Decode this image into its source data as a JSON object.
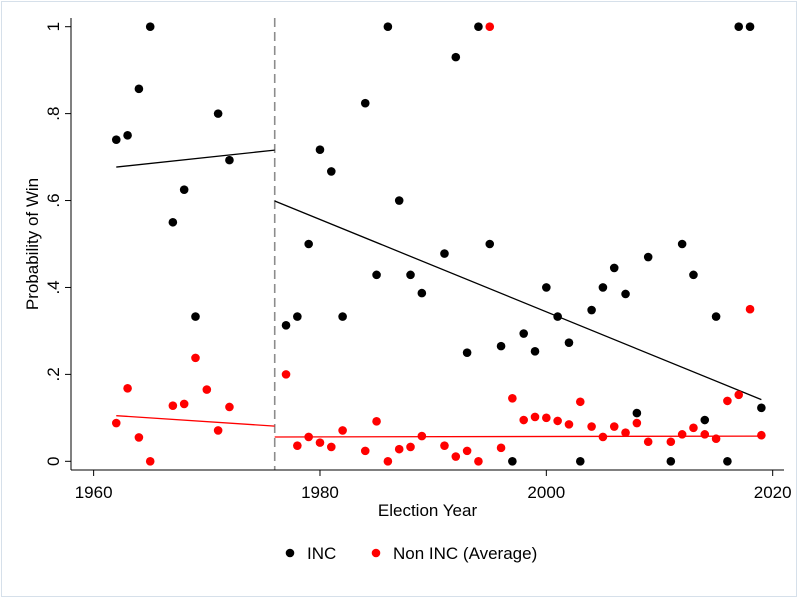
{
  "chart_data": {
    "type": "scatter",
    "xlabel": "Election Year",
    "ylabel": "Probability of Win",
    "xlim": [
      1958,
      2021
    ],
    "ylim": [
      -0.02,
      1.02
    ],
    "x_ticks": [
      1960,
      1980,
      2000,
      2020
    ],
    "x_tick_labels": [
      "1960",
      "1980",
      "2000",
      "2020"
    ],
    "y_ticks": [
      0,
      0.2,
      0.4,
      0.6,
      0.8,
      1
    ],
    "y_tick_labels": [
      "0",
      ".2",
      ".4",
      ".6",
      ".8",
      "1"
    ],
    "grid": false,
    "legend_position": "bottom",
    "cutoff_x": 1976,
    "series": [
      {
        "name": "INC",
        "color": "#000000",
        "points": [
          [
            1962,
            0.74
          ],
          [
            1963,
            0.75
          ],
          [
            1964,
            0.857
          ],
          [
            1965,
            1.0
          ],
          [
            1967,
            0.55
          ],
          [
            1968,
            0.625
          ],
          [
            1969,
            0.333
          ],
          [
            1971,
            0.8
          ],
          [
            1972,
            0.693
          ],
          [
            1977,
            0.313
          ],
          [
            1978,
            0.333
          ],
          [
            1979,
            0.5
          ],
          [
            1980,
            0.717
          ],
          [
            1981,
            0.667
          ],
          [
            1982,
            0.333
          ],
          [
            1984,
            0.824
          ],
          [
            1985,
            0.429
          ],
          [
            1986,
            1.0
          ],
          [
            1987,
            0.6
          ],
          [
            1988,
            0.429
          ],
          [
            1989,
            0.387
          ],
          [
            1991,
            0.478
          ],
          [
            1992,
            0.93
          ],
          [
            1993,
            0.25
          ],
          [
            1994,
            1.0
          ],
          [
            1995,
            0.5
          ],
          [
            1996,
            0.265
          ],
          [
            1997,
            0.0
          ],
          [
            1998,
            0.294
          ],
          [
            1999,
            0.253
          ],
          [
            2000,
            0.4
          ],
          [
            2001,
            0.333
          ],
          [
            2002,
            0.273
          ],
          [
            2003,
            0.0
          ],
          [
            2004,
            0.348
          ],
          [
            2005,
            0.4
          ],
          [
            2006,
            0.445
          ],
          [
            2007,
            0.385
          ],
          [
            2008,
            0.111
          ],
          [
            2009,
            0.47
          ],
          [
            2011,
            0.0
          ],
          [
            2012,
            0.5
          ],
          [
            2013,
            0.429
          ],
          [
            2014,
            0.095
          ],
          [
            2015,
            0.333
          ],
          [
            2016,
            0.0
          ],
          [
            2017,
            1.0
          ],
          [
            2018,
            1.0
          ],
          [
            2019,
            0.123
          ]
        ],
        "fits": [
          {
            "x": [
              1962,
              1976
            ],
            "y": [
              0.677,
              0.716
            ]
          },
          {
            "x": [
              1976,
              2019
            ],
            "y": [
              0.599,
              0.142
            ]
          }
        ]
      },
      {
        "name": "Non INC (Average)",
        "color": "#ff0000",
        "points": [
          [
            1962,
            0.088
          ],
          [
            1963,
            0.168
          ],
          [
            1964,
            0.055
          ],
          [
            1965,
            0.0
          ],
          [
            1967,
            0.128
          ],
          [
            1968,
            0.132
          ],
          [
            1969,
            0.238
          ],
          [
            1970,
            0.165
          ],
          [
            1971,
            0.071
          ],
          [
            1972,
            0.125
          ],
          [
            1977,
            0.2
          ],
          [
            1978,
            0.036
          ],
          [
            1979,
            0.056
          ],
          [
            1980,
            0.043
          ],
          [
            1981,
            0.033
          ],
          [
            1982,
            0.071
          ],
          [
            1984,
            0.024
          ],
          [
            1985,
            0.092
          ],
          [
            1986,
            0.0
          ],
          [
            1987,
            0.028
          ],
          [
            1988,
            0.033
          ],
          [
            1989,
            0.058
          ],
          [
            1991,
            0.036
          ],
          [
            1992,
            0.011
          ],
          [
            1993,
            0.024
          ],
          [
            1994,
            0.0
          ],
          [
            1995,
            1.0
          ],
          [
            1996,
            0.031
          ],
          [
            1997,
            0.145
          ],
          [
            1998,
            0.095
          ],
          [
            1999,
            0.102
          ],
          [
            2000,
            0.1
          ],
          [
            2001,
            0.093
          ],
          [
            2002,
            0.085
          ],
          [
            2003,
            0.137
          ],
          [
            2004,
            0.08
          ],
          [
            2005,
            0.056
          ],
          [
            2006,
            0.08
          ],
          [
            2007,
            0.066
          ],
          [
            2008,
            0.088
          ],
          [
            2009,
            0.045
          ],
          [
            2011,
            0.045
          ],
          [
            2012,
            0.062
          ],
          [
            2013,
            0.077
          ],
          [
            2014,
            0.062
          ],
          [
            2015,
            0.052
          ],
          [
            2016,
            0.139
          ],
          [
            2017,
            0.153
          ],
          [
            2018,
            0.35
          ],
          [
            2019,
            0.06
          ]
        ],
        "fits": [
          {
            "x": [
              1962,
              1976
            ],
            "y": [
              0.105,
              0.081
            ]
          },
          {
            "x": [
              1976,
              2019
            ],
            "y": [
              0.056,
              0.058
            ]
          }
        ]
      }
    ],
    "legend": [
      {
        "label": "INC",
        "color": "#000000"
      },
      {
        "label": "Non INC (Average)",
        "color": "#ff0000"
      }
    ]
  }
}
